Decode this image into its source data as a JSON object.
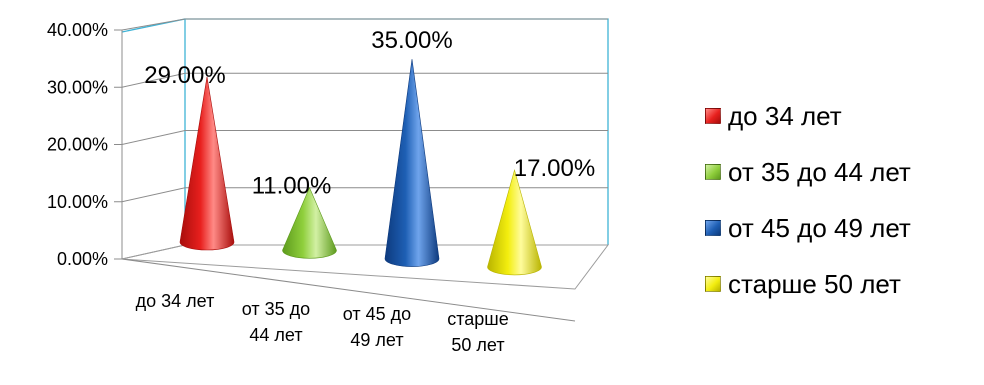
{
  "chart_data": {
    "type": "bar",
    "shape": "cone-3d",
    "categories": [
      [
        "до 34 лет"
      ],
      [
        "от 35 до",
        "44 лет"
      ],
      [
        "от 45 до",
        "49 лет"
      ],
      [
        "старше",
        "50 лет"
      ]
    ],
    "values": [
      29.0,
      11.0,
      35.0,
      17.0
    ],
    "data_labels": [
      "29.00%",
      "11.00%",
      "35.00%",
      "17.00%"
    ],
    "y_ticks": [
      "0.00%",
      "10.00%",
      "20.00%",
      "30.00%",
      "40.00%"
    ],
    "ylim": [
      0,
      40
    ],
    "grid": true,
    "legend_position": "right",
    "legend": [
      {
        "label": "до 34 лет",
        "color": "#e8201e"
      },
      {
        "label": "от 35 до 44 лет",
        "color": "#8fcf3c"
      },
      {
        "label": "от 45 до 49 лет",
        "color": "#1e5fb4"
      },
      {
        "label": "старше 50 лет",
        "color": "#f3ee0f"
      }
    ],
    "colors": [
      "#e8201e",
      "#8fcf3c",
      "#1e5fb4",
      "#f3ee0f"
    ],
    "colors_dark": [
      "#a80d0b",
      "#5d9a1d",
      "#0d3a7e",
      "#b9b400"
    ],
    "colors_light": [
      "#ff8a86",
      "#d2f0a4",
      "#6fa4ec",
      "#fffc9c"
    ]
  }
}
